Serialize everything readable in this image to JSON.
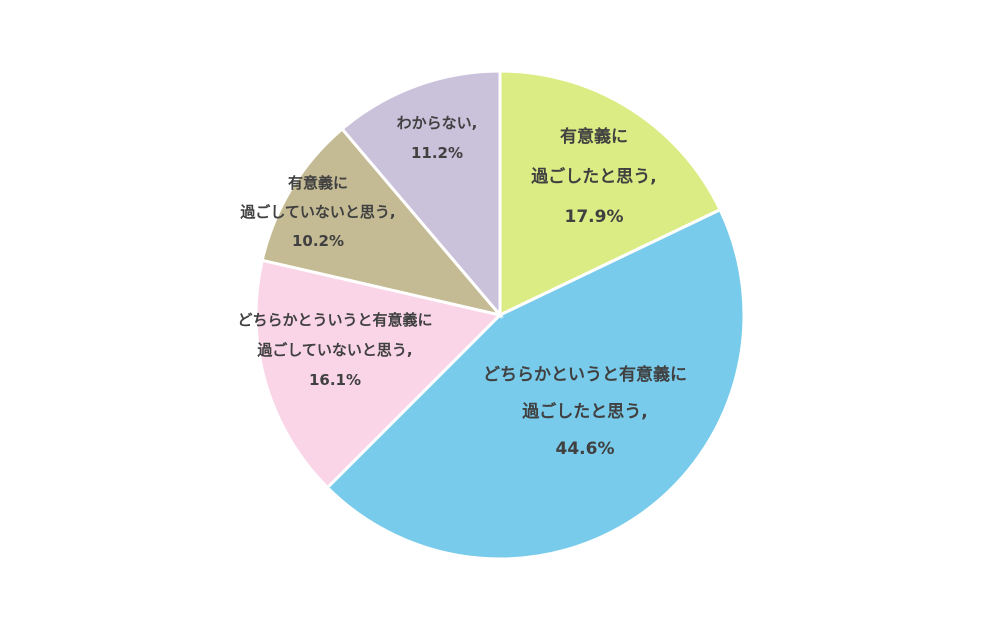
{
  "chart_data": {
    "type": "pie",
    "title": "",
    "start_angle_deg": 0,
    "direction": "clockwise",
    "slices": [
      {
        "label_lines": [
          "有意義に",
          "過ごしたと思う,"
        ],
        "percent_label": "17.9%",
        "value": 17.9,
        "color": "#dcec84"
      },
      {
        "label_lines": [
          "どちらかというと有意義に",
          "過ごしたと思う,"
        ],
        "percent_label": "44.6%",
        "value": 44.6,
        "color": "#79cbeb"
      },
      {
        "label_lines": [
          "どちらかとういうと有意義に",
          "過ごしていないと思う,"
        ],
        "percent_label": "16.1%",
        "value": 16.1,
        "color": "#f9d5e7"
      },
      {
        "label_lines": [
          "有意義に",
          "過ごしていないと思う,"
        ],
        "percent_label": "10.2%",
        "value": 10.2,
        "color": "#c4bb94"
      },
      {
        "label_lines": [
          "わからない,"
        ],
        "percent_label": "11.2%",
        "value": 11.2,
        "color": "#cac1db"
      }
    ]
  }
}
